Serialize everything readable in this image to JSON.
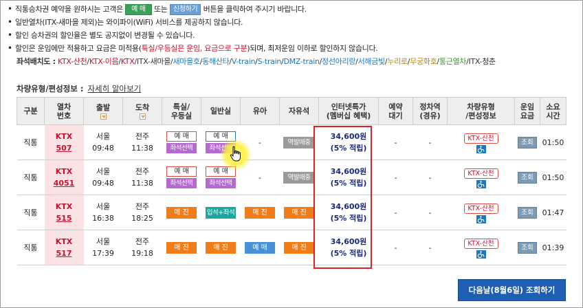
{
  "notices": {
    "n1_pre": "직통승차권 예약을 원하시는 고객은 ",
    "n1_btn_reserve": "예 매",
    "n1_mid": " 또는 ",
    "n1_btn_apply": "신청하기",
    "n1_post": " 버튼을 클릭하여 주시기 바랍니다.",
    "n2": "일반열차(ITX-새마을 제외)는 와이파이(WiFi) 서비스를 제공하지 않습니다.",
    "n3": "할인 승차권의 할인율은 별도 공지없이 변경될 수 있습니다.",
    "n4_pre": "할인은 운임에만 적용하고 요금은 미적용(",
    "n4_red": "특실/우등실은 운임, 요금으로 구분",
    "n4_post": ")되며, 최저운임 이하로 할인하지 않습니다."
  },
  "seatmap": {
    "label": "좌석배치도 :",
    "links": [
      {
        "text": "KTX-산천",
        "color": "#c8102e"
      },
      {
        "text": "KTX-이음",
        "color": "#c8102e"
      },
      {
        "text": "KTX",
        "color": "#c8102e"
      },
      {
        "text": "ITX-새마을",
        "color": "#333333"
      },
      {
        "text": "새마을호",
        "color": "#1f77c0"
      },
      {
        "text": "동해산타",
        "color": "#1f77c0"
      },
      {
        "text": "V-train",
        "color": "#1f77c0"
      },
      {
        "text": "S-train",
        "color": "#1f77c0"
      },
      {
        "text": "DMZ-train",
        "color": "#1f77c0"
      },
      {
        "text": "정선아리랑",
        "color": "#1f77c0"
      },
      {
        "text": "서해금빛",
        "color": "#1f77c0"
      },
      {
        "text": "누리로",
        "color": "#b9890f"
      },
      {
        "text": "무궁화호",
        "color": "#b9890f"
      },
      {
        "text": "통근열차",
        "color": "#3a9a3a"
      },
      {
        "text": "ITX-청춘",
        "color": "#333333"
      }
    ]
  },
  "info": {
    "title": "차량유형/편성정보",
    "sep": " : ",
    "link": "자세히 알아보기"
  },
  "table": {
    "headers": {
      "gubun": "구분",
      "train_l1": "열차",
      "train_l2": "번호",
      "dep": "출발",
      "arr": "도착",
      "first_l1": "특실/",
      "first_l2": "우등실",
      "normal": "일반실",
      "baby": "유아",
      "free": "자유석",
      "internet_l1": "인터넷특가",
      "internet_l2": "(멤버십 혜택)",
      "wait_l1": "예약",
      "wait_l2": "대기",
      "stop_l1": "정차역",
      "stop_l2": "(경유)",
      "type_l1": "차량유형",
      "type_l2": "/편성정보",
      "fare_l1": "운임",
      "fare_l2": "요금",
      "time_l1": "소요",
      "time_l2": "시간"
    },
    "rows": [
      {
        "gubun": "직통",
        "kind": "KTX",
        "num": "507",
        "dep_st": "서울",
        "dep_t": "09:48",
        "arr_st": "전주",
        "arr_t": "11:38",
        "first_a": "예 매",
        "first_b": "좌석선택",
        "normal_a": "예 매",
        "normal_b": "좌석선택",
        "baby": "-",
        "free": "역발매중",
        "price": "34,600원",
        "pct": "(5% 적립)",
        "wait": "-",
        "stop": "-",
        "type": "KTX-산천",
        "fare": "조회",
        "time": "01:50"
      },
      {
        "gubun": "직통",
        "kind": "KTX",
        "num": "4051",
        "dep_st": "서울",
        "dep_t": "09:48",
        "arr_st": "전주",
        "arr_t": "11:38",
        "first_a": "예 매",
        "first_b": "좌석선택",
        "normal_a": "예 매",
        "normal_b": "좌석선택",
        "baby": "-",
        "free": "역발매중",
        "price": "34,600원",
        "pct": "(5% 적립)",
        "wait": "-",
        "stop": "-",
        "type": "KTX-산천",
        "fare": "조회",
        "time": "01:50"
      },
      {
        "gubun": "직통",
        "kind": "KTX",
        "num": "515",
        "dep_st": "서울",
        "dep_t": "16:38",
        "arr_st": "전주",
        "arr_t": "18:25",
        "first_sold": "매 진",
        "normal_std": "입석+좌석",
        "baby_sold": "매 진",
        "free_sold": "매 진",
        "price": "34,600원",
        "pct": "(5% 적립)",
        "wait": "-",
        "stop": "-",
        "type": "KTX-산천",
        "fare": "조회",
        "time": "01:47"
      },
      {
        "gubun": "직통",
        "kind": "KTX",
        "num": "517",
        "dep_st": "서울",
        "dep_t": "17:39",
        "arr_st": "전주",
        "arr_t": "19:18",
        "first_sold": "매 진",
        "normal_sold": "매 진",
        "baby_res": "예 매",
        "free_sold": "매 진",
        "price": "34,600원",
        "pct": "(5% 적립)",
        "wait": "-",
        "stop": "-",
        "type": "KTX-산천",
        "fare": "조회",
        "time": "01:39"
      }
    ]
  },
  "next_button": "다음날(8월6일) 조회하기"
}
